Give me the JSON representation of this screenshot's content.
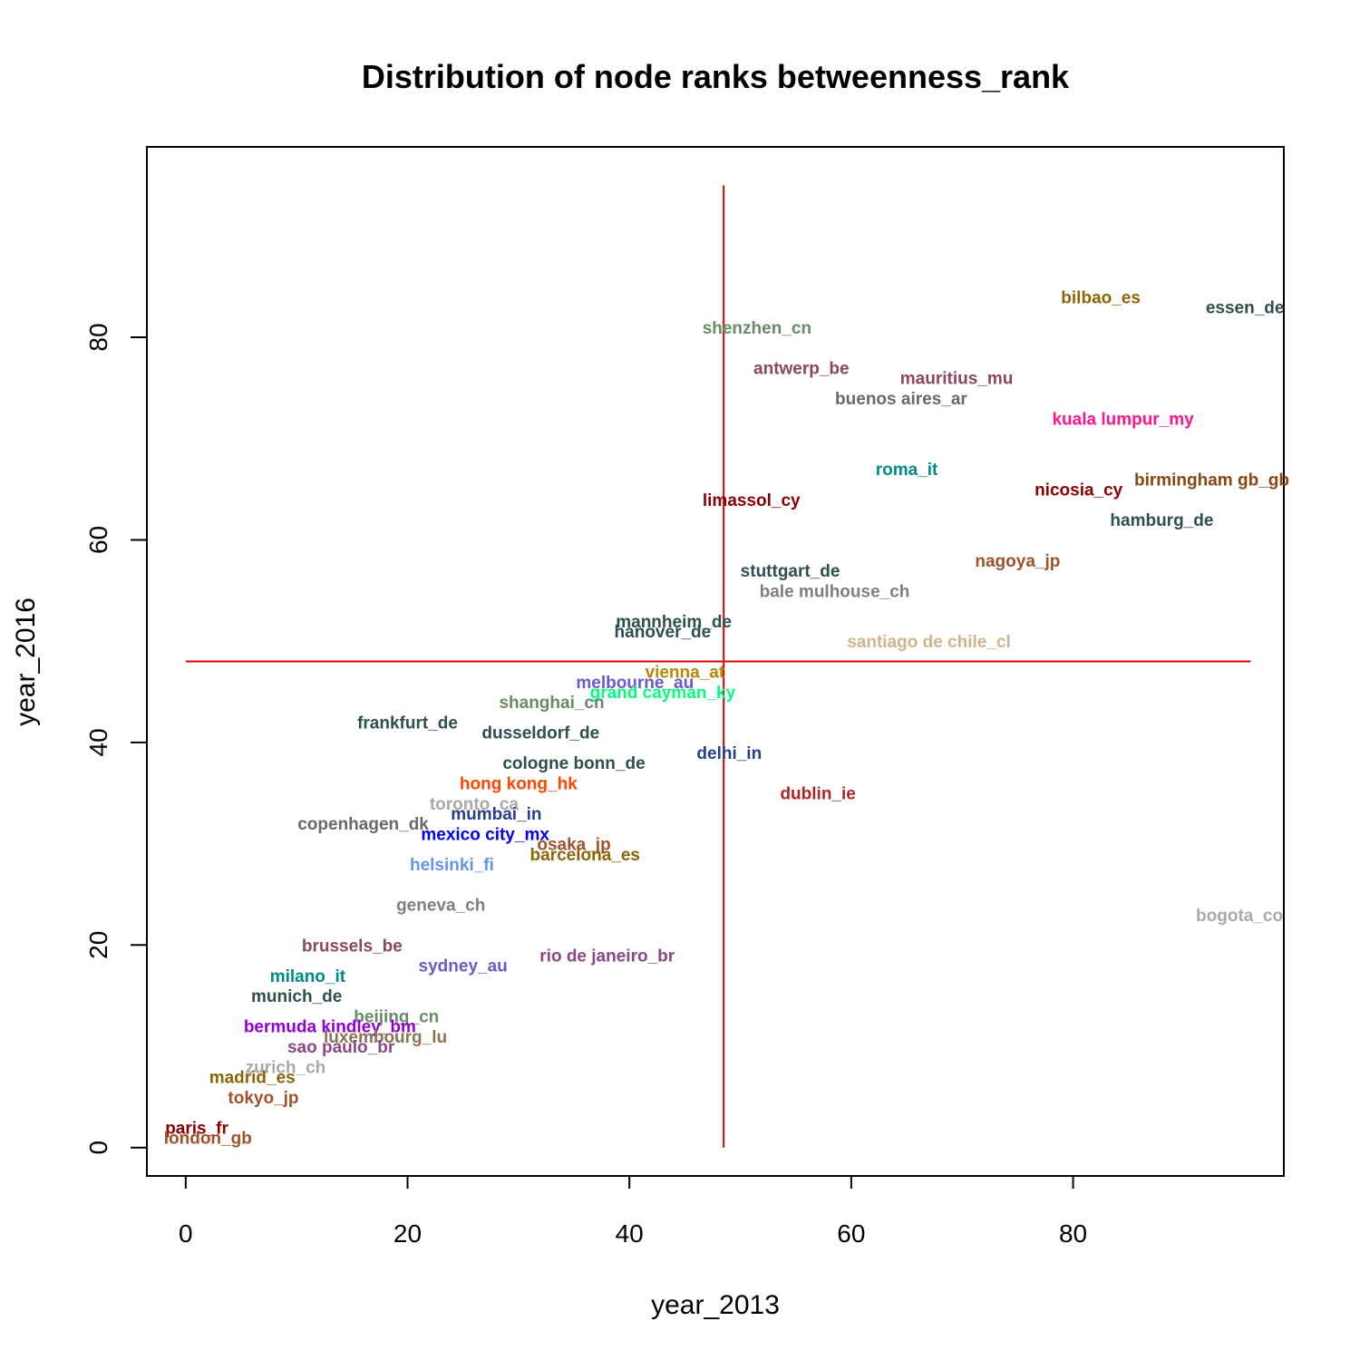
{
  "chart_data": {
    "type": "scatter",
    "title": "Distribution of node ranks betweenness_rank",
    "xlabel": "year_2013",
    "ylabel": "year_2016",
    "xlim": [
      -3.5,
      99
    ],
    "ylim": [
      -2.8,
      98.8
    ],
    "xticks": [
      0,
      20,
      40,
      60,
      80
    ],
    "yticks": [
      0,
      20,
      40,
      60,
      80
    ],
    "grid": false,
    "reference_lines": {
      "color": "#dd0000",
      "vertical": {
        "x": 48.5,
        "y_from": 0,
        "y_to": 95
      },
      "horizontal": {
        "y": 48,
        "x_from": 0,
        "x_to": 96
      }
    },
    "points": [
      {
        "label": "bilbao_es",
        "x": 82.5,
        "y": 84,
        "color": "#8B6508"
      },
      {
        "label": "essen_de",
        "x": 95.5,
        "y": 83,
        "color": "#2F4F4F"
      },
      {
        "label": "shenzhen_cn",
        "x": 51.5,
        "y": 81,
        "color": "#698B69"
      },
      {
        "label": "antwerp_be",
        "x": 55.5,
        "y": 77,
        "color": "#8B475D"
      },
      {
        "label": "mauritius_mu",
        "x": 69.5,
        "y": 76,
        "color": "#8B475D"
      },
      {
        "label": "buenos aires_ar",
        "x": 64.5,
        "y": 74,
        "color": "#696969"
      },
      {
        "label": "kuala lumpur_my",
        "x": 84.5,
        "y": 72,
        "color": "#FF1493"
      },
      {
        "label": "roma_it",
        "x": 65,
        "y": 67,
        "color": "#008B8B"
      },
      {
        "label": "birmingham gb_gb",
        "x": 92.5,
        "y": 66,
        "color": "#8B4513"
      },
      {
        "label": "nicosia_cy",
        "x": 80.5,
        "y": 65,
        "color": "#8B0000"
      },
      {
        "label": "limassol_cy",
        "x": 51,
        "y": 64,
        "color": "#8B0000"
      },
      {
        "label": "hamburg_de",
        "x": 88,
        "y": 62,
        "color": "#2F4F4F"
      },
      {
        "label": "nagoya_jp",
        "x": 75,
        "y": 58,
        "color": "#A0522D"
      },
      {
        "label": "stuttgart_de",
        "x": 54.5,
        "y": 57,
        "color": "#2F4F4F"
      },
      {
        "label": "bale mulhouse_ch",
        "x": 58.5,
        "y": 55,
        "color": "#7F7F7F"
      },
      {
        "label": "mannheim_de",
        "x": 44,
        "y": 52,
        "color": "#2F4F4F"
      },
      {
        "label": "hanover_de",
        "x": 43,
        "y": 51,
        "color": "#2F4F4F"
      },
      {
        "label": "santiago de chile_cl",
        "x": 67,
        "y": 50,
        "color": "#D2B48C"
      },
      {
        "label": "vienna_at",
        "x": 45,
        "y": 47,
        "color": "#B8860B"
      },
      {
        "label": "melbourne_au",
        "x": 40.5,
        "y": 46,
        "color": "#6A5ACD"
      },
      {
        "label": "grand cayman_ky",
        "x": 43,
        "y": 45,
        "color": "#00FF7F"
      },
      {
        "label": "shanghai_cn",
        "x": 33,
        "y": 44,
        "color": "#698B69"
      },
      {
        "label": "frankfurt_de",
        "x": 20,
        "y": 42,
        "color": "#2F4F4F"
      },
      {
        "label": "dusseldorf_de",
        "x": 32,
        "y": 41,
        "color": "#2F4F4F"
      },
      {
        "label": "delhi_in",
        "x": 49,
        "y": 39,
        "color": "#27408B"
      },
      {
        "label": "cologne bonn_de",
        "x": 35,
        "y": 38,
        "color": "#2F4F4F"
      },
      {
        "label": "hong kong_hk",
        "x": 30,
        "y": 36,
        "color": "#FF4500"
      },
      {
        "label": "dublin_ie",
        "x": 57,
        "y": 35,
        "color": "#B22222"
      },
      {
        "label": "toronto_ca",
        "x": 26,
        "y": 34,
        "color": "#A9A9A9"
      },
      {
        "label": "mumbai_in",
        "x": 28,
        "y": 33,
        "color": "#27408B"
      },
      {
        "label": "copenhagen_dk",
        "x": 16,
        "y": 32,
        "color": "#696969"
      },
      {
        "label": "mexico city_mx",
        "x": 27,
        "y": 31,
        "color": "#0000EE"
      },
      {
        "label": "osaka_jp",
        "x": 35,
        "y": 30,
        "color": "#A0522D"
      },
      {
        "label": "barcelona_es",
        "x": 36,
        "y": 29,
        "color": "#8B6508"
      },
      {
        "label": "helsinki_fi",
        "x": 24,
        "y": 28,
        "color": "#6495ED"
      },
      {
        "label": "geneva_ch",
        "x": 23,
        "y": 24,
        "color": "#7F7F7F"
      },
      {
        "label": "bogota_co",
        "x": 95,
        "y": 23,
        "color": "#A9A9A9"
      },
      {
        "label": "brussels_be",
        "x": 15,
        "y": 20,
        "color": "#8B475D"
      },
      {
        "label": "rio de janeiro_br",
        "x": 38,
        "y": 19,
        "color": "#8B4789"
      },
      {
        "label": "sydney_au",
        "x": 25,
        "y": 18,
        "color": "#6A5ACD"
      },
      {
        "label": "milano_it",
        "x": 11,
        "y": 17,
        "color": "#008B8B"
      },
      {
        "label": "munich_de",
        "x": 10,
        "y": 15,
        "color": "#2F4F4F"
      },
      {
        "label": "beijing_cn",
        "x": 19,
        "y": 13,
        "color": "#698B69"
      },
      {
        "label": "bermuda kindley_bm",
        "x": 13,
        "y": 12,
        "color": "#9400D3"
      },
      {
        "label": "luxembourg_lu",
        "x": 18,
        "y": 11,
        "color": "#8B7355"
      },
      {
        "label": "sao paulo_br",
        "x": 14,
        "y": 10,
        "color": "#8B4789"
      },
      {
        "label": "zurich_ch",
        "x": 9,
        "y": 8,
        "color": "#A9A9A9"
      },
      {
        "label": "madrid_es",
        "x": 6,
        "y": 7,
        "color": "#8B6508"
      },
      {
        "label": "tokyo_jp",
        "x": 7,
        "y": 5,
        "color": "#A0522D"
      },
      {
        "label": "paris_fr",
        "x": 1,
        "y": 2,
        "color": "#8B0000"
      },
      {
        "label": "london_gb",
        "x": 2,
        "y": 1,
        "color": "#A0522D"
      }
    ]
  }
}
